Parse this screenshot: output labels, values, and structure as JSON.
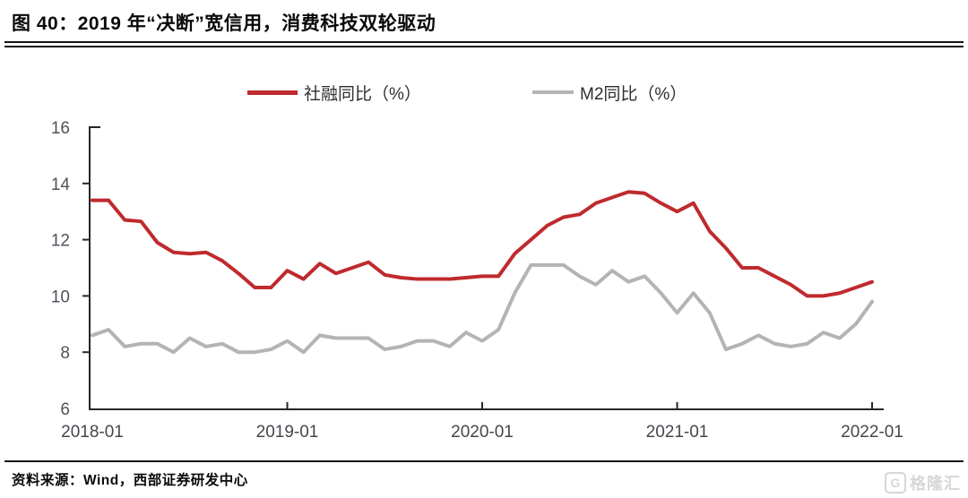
{
  "header": {
    "title": "图 40：2019 年“决断”宽信用，消费科技双轮驱动"
  },
  "footer": {
    "source": "资料来源：Wind，西部证券研发中心",
    "logo_icon": "G",
    "logo_text": "格隆汇"
  },
  "chart_data": {
    "type": "line",
    "title": "图 40：2019 年“决断”宽信用，消费科技双轮驱动",
    "xlabel": "",
    "ylabel": "",
    "ylim": [
      6,
      16
    ],
    "yticks": [
      6,
      8,
      10,
      12,
      14,
      16
    ],
    "grid": false,
    "legend_position": "top",
    "x": [
      "2018-01",
      "2018-02",
      "2018-03",
      "2018-04",
      "2018-05",
      "2018-06",
      "2018-07",
      "2018-08",
      "2018-09",
      "2018-10",
      "2018-11",
      "2018-12",
      "2019-01",
      "2019-02",
      "2019-03",
      "2019-04",
      "2019-05",
      "2019-06",
      "2019-07",
      "2019-08",
      "2019-09",
      "2019-10",
      "2019-11",
      "2019-12",
      "2020-01",
      "2020-02",
      "2020-03",
      "2020-04",
      "2020-05",
      "2020-06",
      "2020-07",
      "2020-08",
      "2020-09",
      "2020-10",
      "2020-11",
      "2020-12",
      "2021-01",
      "2021-02",
      "2021-03",
      "2021-04",
      "2021-05",
      "2021-06",
      "2021-07",
      "2021-08",
      "2021-09",
      "2021-10",
      "2021-11",
      "2021-12",
      "2022-01"
    ],
    "xticks": [
      {
        "label": "2018-01",
        "index": 0
      },
      {
        "label": "2019-01",
        "index": 12
      },
      {
        "label": "2020-01",
        "index": 24
      },
      {
        "label": "2021-01",
        "index": 36
      },
      {
        "label": "2022-01",
        "index": 48
      }
    ],
    "series": [
      {
        "name": "社融同比（%）",
        "color": "#bf2a2e",
        "values": [
          13.4,
          13.4,
          12.7,
          12.65,
          11.9,
          11.55,
          11.5,
          11.55,
          11.25,
          10.8,
          10.3,
          10.3,
          10.9,
          10.6,
          11.15,
          10.8,
          11.0,
          11.2,
          10.75,
          10.65,
          10.6,
          10.6,
          10.6,
          10.65,
          10.7,
          10.7,
          11.5,
          12.0,
          12.5,
          12.8,
          12.9,
          13.3,
          13.5,
          13.7,
          13.65,
          13.3,
          13.0,
          13.3,
          12.3,
          11.7,
          11.0,
          11.0,
          10.7,
          10.4,
          10.0,
          10.0,
          10.1,
          10.3,
          10.5
        ]
      },
      {
        "name": "M2同比（%）",
        "color": "#b5b3b3",
        "values": [
          8.6,
          8.8,
          8.2,
          8.3,
          8.3,
          8.0,
          8.5,
          8.2,
          8.3,
          8.0,
          8.0,
          8.1,
          8.4,
          8.0,
          8.6,
          8.5,
          8.5,
          8.5,
          8.1,
          8.2,
          8.4,
          8.4,
          8.2,
          8.7,
          8.4,
          8.8,
          10.1,
          11.1,
          11.1,
          11.1,
          10.7,
          10.4,
          10.9,
          10.5,
          10.7,
          10.1,
          9.4,
          10.1,
          9.4,
          8.1,
          8.3,
          8.6,
          8.3,
          8.2,
          8.3,
          8.7,
          8.5,
          9.0,
          9.8
        ]
      }
    ]
  }
}
